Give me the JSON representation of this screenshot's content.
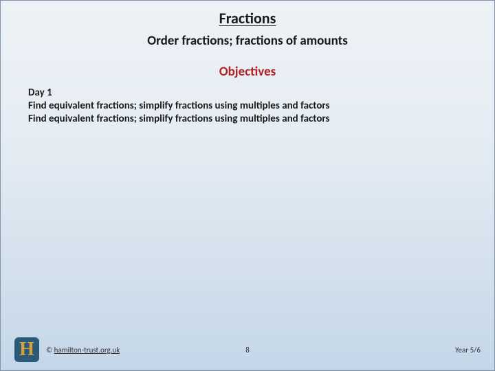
{
  "title": "Fractions",
  "subtitle": "Order fractions; fractions of amounts",
  "objectives_heading": "Objectives",
  "day_label": "Day 1",
  "objectives": [
    "Find equivalent fractions; simplify fractions using multiples and factors",
    "Find equivalent fractions; simplify fractions using multiples and factors"
  ],
  "footer": {
    "logo_letter": "H",
    "copyright_prefix": "© ",
    "copyright_link": "hamilton-trust.org.uk",
    "page_number": "8",
    "year_label": "Year 5/6"
  },
  "colors": {
    "heading_red": "#b22222",
    "text_dark": "#1a1a1a",
    "border": "#7a95ad",
    "logo_bg": "#2b5a78",
    "logo_fg": "#d9a03a",
    "bg_top": "#eef2f6",
    "bg_bottom": "#c3d6e8"
  }
}
